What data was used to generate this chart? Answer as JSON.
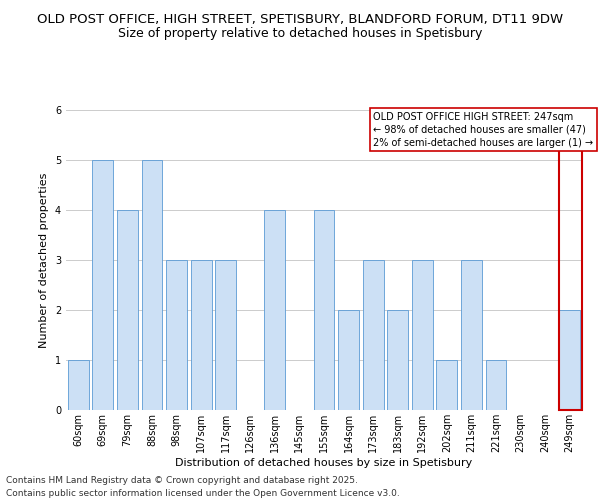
{
  "title_line1": "OLD POST OFFICE, HIGH STREET, SPETISBURY, BLANDFORD FORUM, DT11 9DW",
  "title_line2": "Size of property relative to detached houses in Spetisbury",
  "xlabel": "Distribution of detached houses by size in Spetisbury",
  "ylabel": "Number of detached properties",
  "categories": [
    "60sqm",
    "69sqm",
    "79sqm",
    "88sqm",
    "98sqm",
    "107sqm",
    "117sqm",
    "126sqm",
    "136sqm",
    "145sqm",
    "155sqm",
    "164sqm",
    "173sqm",
    "183sqm",
    "192sqm",
    "202sqm",
    "211sqm",
    "221sqm",
    "230sqm",
    "240sqm",
    "249sqm"
  ],
  "values": [
    1,
    5,
    4,
    5,
    3,
    3,
    3,
    0,
    4,
    0,
    4,
    2,
    3,
    2,
    3,
    1,
    3,
    1,
    0,
    0,
    2
  ],
  "bar_color": "#cce0f5",
  "bar_edge_color": "#5b9bd5",
  "highlight_index": 20,
  "highlight_border_color": "#cc0000",
  "ylim": [
    0,
    6
  ],
  "yticks": [
    0,
    1,
    2,
    3,
    4,
    5,
    6
  ],
  "legend_text_line1": "OLD POST OFFICE HIGH STREET: 247sqm",
  "legend_text_line2": "← 98% of detached houses are smaller (47)",
  "legend_text_line3": "2% of semi-detached houses are larger (1) →",
  "footer_line1": "Contains HM Land Registry data © Crown copyright and database right 2025.",
  "footer_line2": "Contains public sector information licensed under the Open Government Licence v3.0.",
  "background_color": "#ffffff",
  "grid_color": "#cccccc",
  "title_fontsize": 9.5,
  "subtitle_fontsize": 9,
  "axis_label_fontsize": 8,
  "tick_fontsize": 7,
  "legend_fontsize": 7,
  "footer_fontsize": 6.5
}
